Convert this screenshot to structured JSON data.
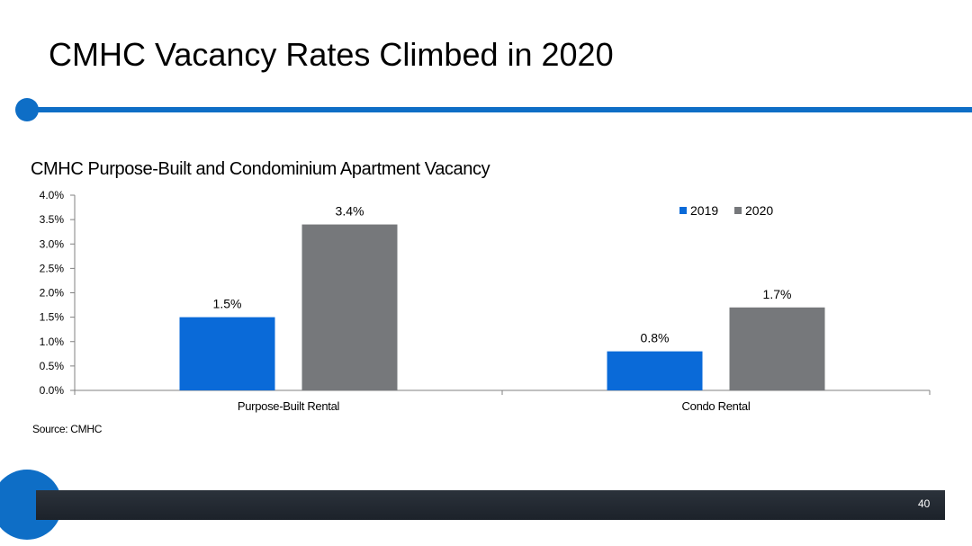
{
  "slide": {
    "title": "CMHC Vacancy Rates Climbed in 2020",
    "source": "Source: CMHC",
    "page_number": "40"
  },
  "colors": {
    "accent": "#0e6ec6",
    "series_2019": "#0a6ad8",
    "series_2020": "#76787b",
    "footer": "#222931"
  },
  "chart_data": {
    "type": "bar",
    "title": "CMHC Purpose-Built and Condominium Apartment Vacancy",
    "categories": [
      "Purpose-Built Rental",
      "Condo Rental"
    ],
    "series": [
      {
        "name": "2019",
        "values": [
          1.5,
          0.8
        ],
        "labels": [
          "1.5%",
          "0.8%"
        ]
      },
      {
        "name": "2020",
        "values": [
          3.4,
          1.7
        ],
        "labels": [
          "3.4%",
          "1.7%"
        ]
      }
    ],
    "ylim": [
      0,
      4.0
    ],
    "yticks": [
      {
        "value": 0.0,
        "label": "0.0%"
      },
      {
        "value": 0.5,
        "label": "0.5%"
      },
      {
        "value": 1.0,
        "label": "1.0%"
      },
      {
        "value": 1.5,
        "label": "1.5%"
      },
      {
        "value": 2.0,
        "label": "2.0%"
      },
      {
        "value": 2.5,
        "label": "2.5%"
      },
      {
        "value": 3.0,
        "label": "3.0%"
      },
      {
        "value": 3.5,
        "label": "3.5%"
      },
      {
        "value": 4.0,
        "label": "4.0%"
      }
    ],
    "xlabel": "",
    "ylabel": "",
    "grid": false,
    "legend_position": "top-right"
  }
}
